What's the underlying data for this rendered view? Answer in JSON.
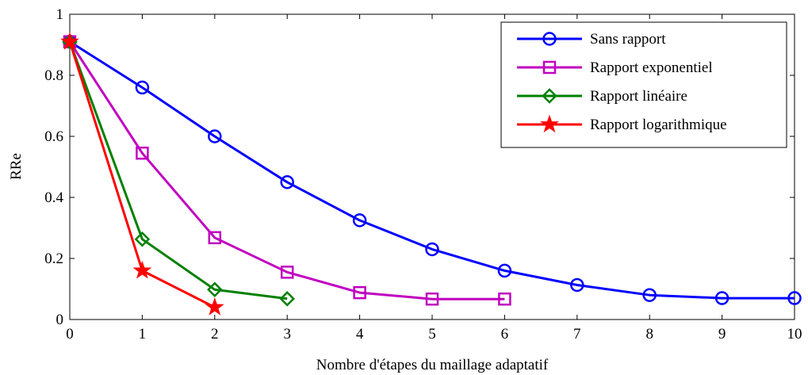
{
  "chart_data": {
    "type": "line",
    "title": "",
    "xlabel": "Nombre d'étapes du maillage adaptatif",
    "ylabel": "RRe",
    "xlim": [
      0,
      10
    ],
    "ylim": [
      0,
      1
    ],
    "xticks": [
      "0",
      "1",
      "2",
      "3",
      "4",
      "5",
      "6",
      "7",
      "8",
      "9",
      "10"
    ],
    "yticks": [
      "0",
      "0.2",
      "0.4",
      "0.6",
      "0.8",
      "1"
    ],
    "grid": false,
    "legend_position": "top-right",
    "series": [
      {
        "name": "Sans rapport",
        "color": "#0000ff",
        "marker": "circle",
        "x": [
          0,
          1,
          2,
          3,
          4,
          5,
          6,
          7,
          8,
          9,
          10
        ],
        "y": [
          0.91,
          0.76,
          0.6,
          0.45,
          0.325,
          0.23,
          0.16,
          0.113,
          0.08,
          0.07,
          0.07
        ]
      },
      {
        "name": "Rapport exponentiel",
        "color": "#c000c0",
        "marker": "square",
        "x": [
          0,
          1,
          2,
          3,
          4,
          5,
          6
        ],
        "y": [
          0.91,
          0.545,
          0.268,
          0.155,
          0.088,
          0.067,
          0.067
        ]
      },
      {
        "name": "Rapport linéaire",
        "color": "#008000",
        "marker": "diamond",
        "x": [
          0,
          1,
          2,
          3
        ],
        "y": [
          0.91,
          0.263,
          0.098,
          0.068
        ]
      },
      {
        "name": "Rapport logarithmique",
        "color": "#ff0000",
        "marker": "star",
        "x": [
          0,
          1,
          2
        ],
        "y": [
          0.91,
          0.16,
          0.04
        ]
      }
    ]
  }
}
